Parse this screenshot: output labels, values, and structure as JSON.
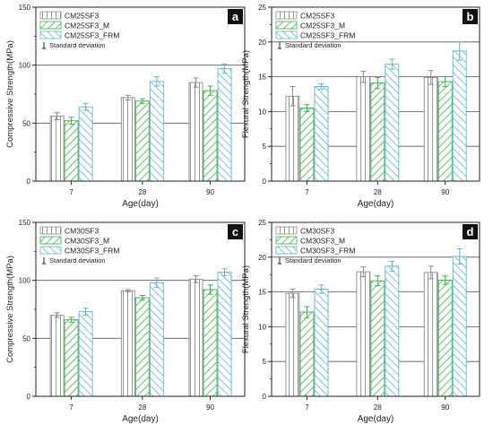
{
  "chart_data": [
    {
      "panel_label": "a",
      "type": "bar",
      "categories": [
        "7",
        "28",
        "90"
      ],
      "xlabel": "Age(day)",
      "ylabel": "Compressive Strength(MPa)",
      "ylim": [
        0,
        150
      ],
      "yticks": [
        0,
        50,
        100,
        150
      ],
      "grid_y": [
        50,
        100
      ],
      "series": [
        {
          "name": "CM25SF3",
          "values": [
            56,
            72,
            85
          ],
          "errors": [
            3,
            2,
            4
          ]
        },
        {
          "name": "CM25SF3_M",
          "values": [
            52,
            69,
            78
          ],
          "errors": [
            3,
            2,
            4
          ]
        },
        {
          "name": "CM25SF3_FRM",
          "values": [
            64,
            86,
            97
          ],
          "errors": [
            3,
            4,
            4
          ]
        }
      ],
      "legend_extra": "Standard deviation"
    },
    {
      "panel_label": "b",
      "type": "bar",
      "categories": [
        "7",
        "28",
        "90"
      ],
      "xlabel": "Age(day)",
      "ylabel": "Flexural Strength(MPa)",
      "ylim": [
        0,
        25
      ],
      "yticks": [
        0,
        5,
        10,
        15,
        20,
        25
      ],
      "grid_y": [
        5,
        10,
        15,
        20
      ],
      "series": [
        {
          "name": "CM25SF3",
          "values": [
            12.2,
            15.0,
            14.9
          ],
          "errors": [
            1.4,
            0.8,
            1.0
          ]
        },
        {
          "name": "CM25SF3_M",
          "values": [
            10.5,
            14.1,
            14.3
          ],
          "errors": [
            0.5,
            0.8,
            0.7
          ]
        },
        {
          "name": "CM25SF3_FRM",
          "values": [
            13.6,
            16.8,
            18.7
          ],
          "errors": [
            0.4,
            0.7,
            1.3
          ]
        }
      ],
      "legend_extra": "Standard deviation"
    },
    {
      "panel_label": "c",
      "type": "bar",
      "categories": [
        "7",
        "28",
        "90"
      ],
      "xlabel": "Age(day)",
      "ylabel": "Compressive Strength(MPa)",
      "ylim": [
        0,
        150
      ],
      "yticks": [
        0,
        50,
        100,
        150
      ],
      "grid_y": [
        50,
        100
      ],
      "series": [
        {
          "name": "CM30SF3",
          "values": [
            70,
            91,
            101
          ],
          "errors": [
            2,
            1,
            3
          ]
        },
        {
          "name": "CM30SF3_M",
          "values": [
            66,
            85,
            92
          ],
          "errors": [
            2,
            2,
            4
          ]
        },
        {
          "name": "CM30SF3_FRM",
          "values": [
            73,
            98,
            107
          ],
          "errors": [
            3,
            4,
            3
          ]
        }
      ],
      "legend_extra": "Standard deviation"
    },
    {
      "panel_label": "d",
      "type": "bar",
      "categories": [
        "7",
        "28",
        "90"
      ],
      "xlabel": "Age(day)",
      "ylabel": "Flexural Strength(MPa)",
      "ylim": [
        0,
        25
      ],
      "yticks": [
        0,
        5,
        10,
        15,
        20,
        25
      ],
      "grid_y": [
        5,
        10,
        15,
        20
      ],
      "series": [
        {
          "name": "CM30SF3",
          "values": [
            14.8,
            17.9,
            17.8
          ],
          "errors": [
            0.6,
            0.7,
            0.9
          ]
        },
        {
          "name": "CM30SF3_M",
          "values": [
            12.1,
            16.6,
            16.7
          ],
          "errors": [
            0.8,
            0.7,
            0.6
          ]
        },
        {
          "name": "CM30SF3_FRM",
          "values": [
            15.4,
            18.7,
            20.1
          ],
          "errors": [
            0.6,
            0.7,
            1.1
          ]
        }
      ],
      "legend_extra": "Standard deviation"
    }
  ],
  "colors": {
    "series": [
      "#8a8a8a",
      "#3fae49",
      "#5fb3cf"
    ],
    "grid": "#555555",
    "badge_bg": "#111111",
    "badge_text": "#ffffff"
  }
}
